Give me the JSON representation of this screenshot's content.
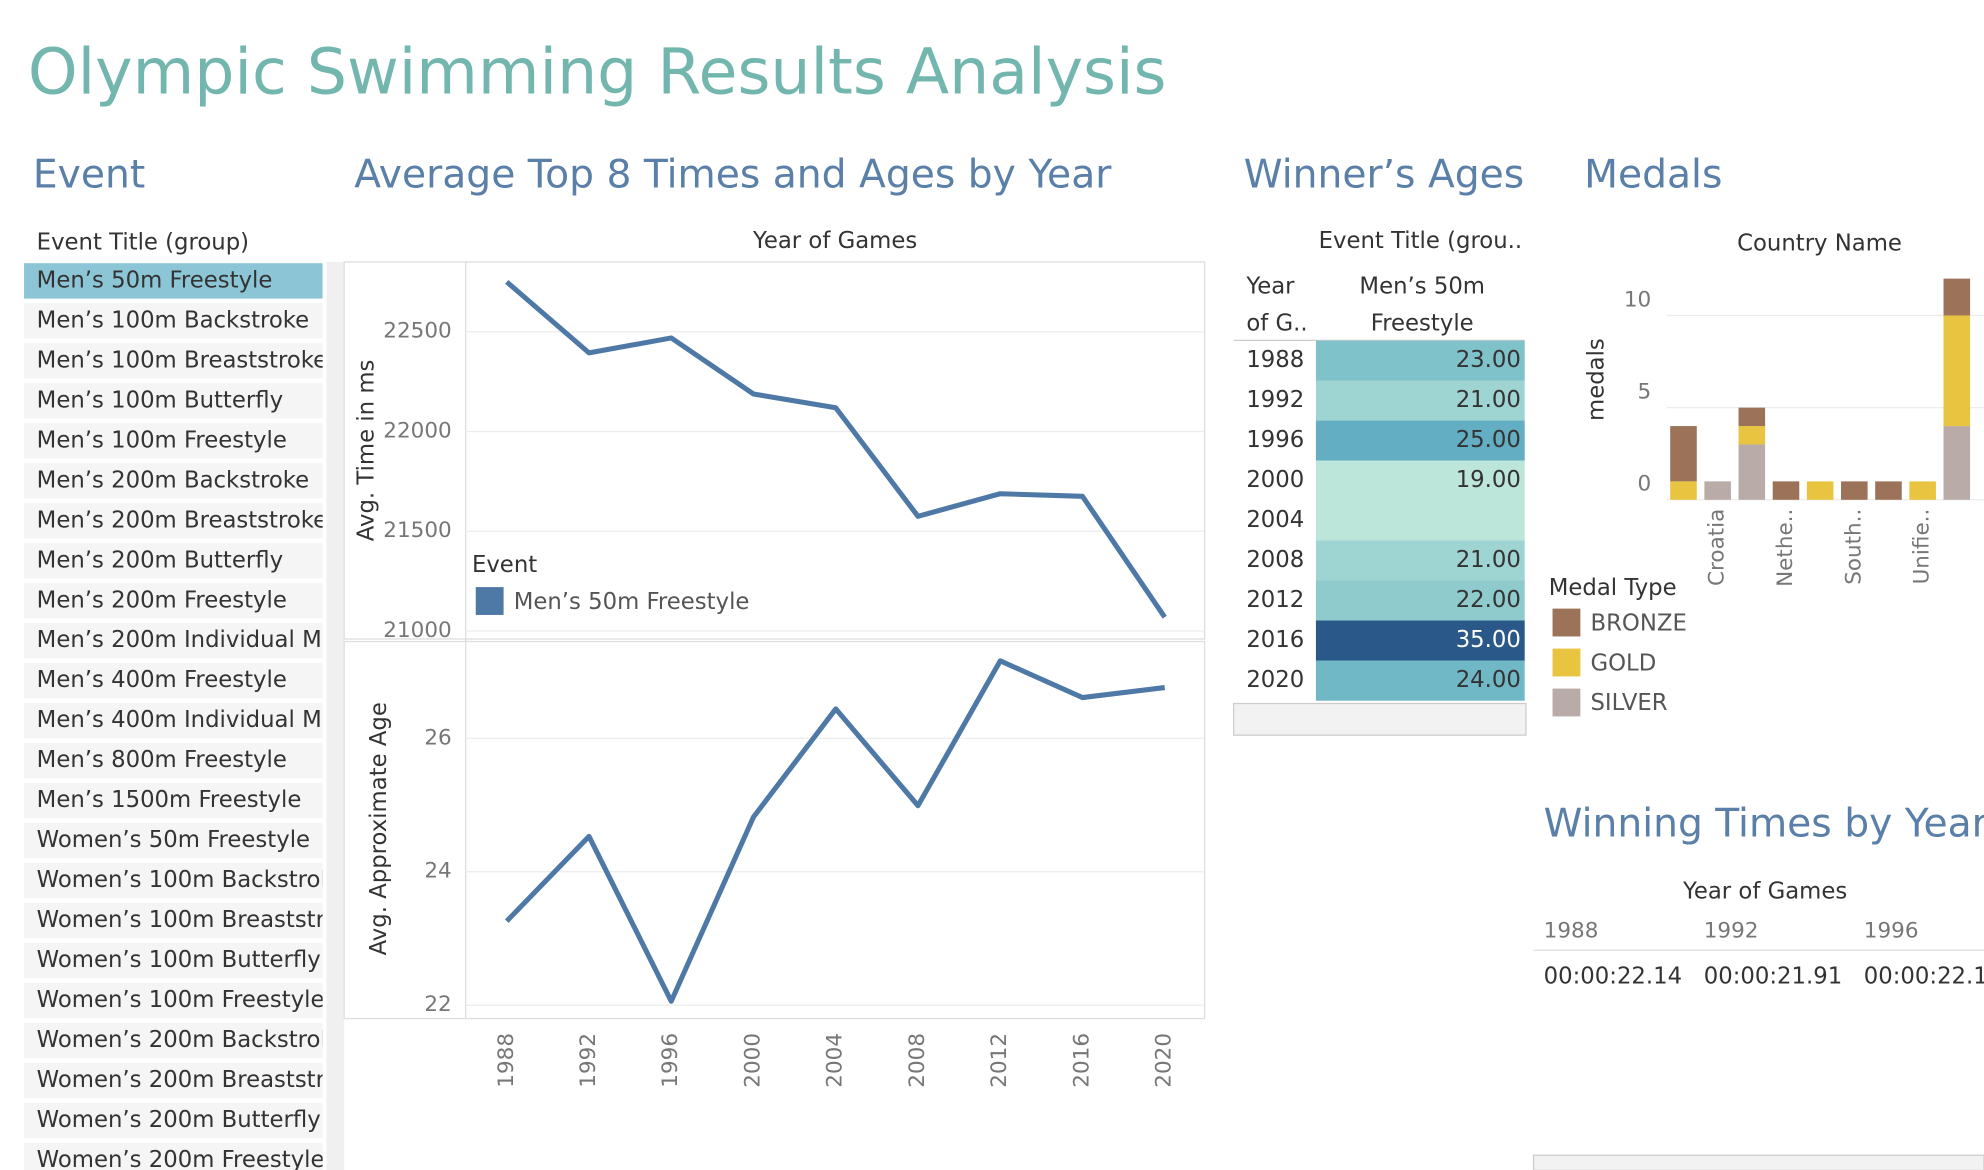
{
  "title": "Olympic Swimming Results Analysis",
  "events": {
    "title": "Event",
    "header": "Event Title (group)",
    "selected_index": 0,
    "items": [
      "Men’s 50m Freestyle",
      "Men’s 100m Backstroke",
      "Men’s 100m Breaststroke",
      "Men’s 100m Butterfly",
      "Men’s 100m Freestyle",
      "Men’s 200m Backstroke",
      "Men’s 200m Breaststroke",
      "Men’s 200m Butterfly",
      "Men’s 200m Freestyle",
      "Men’s 200m Individual M",
      "Men’s 400m Freestyle",
      "Men’s 400m Individual M",
      "Men’s 800m Freestyle",
      "Men’s 1500m Freestyle",
      "Women’s 50m Freestyle",
      "Women’s 100m Backstrol",
      "Women’s 100m Breaststr",
      "Women’s 100m Butterfly",
      "Women’s 100m Freestyle",
      "Women’s 200m Backstrol",
      "Women’s 200m Breaststr",
      "Women’s 200m Butterfly",
      "Women’s 200m Freestyle"
    ]
  },
  "chart_data": [
    {
      "type": "line",
      "title": "Average Top 8 Times and Ages by Year",
      "x_label": "Year of Games",
      "y_label": "Avg. Time in ms",
      "y2_label": "Avg. Approximate Age",
      "legend_title": "Event",
      "categories": [
        "1988",
        "1992",
        "1996",
        "2000",
        "2004",
        "2008",
        "2012",
        "2016",
        "2020"
      ],
      "ylim": [
        20960,
        22850
      ],
      "yticks": [
        21000,
        21500,
        22000,
        22500
      ],
      "y2lim": [
        21.8,
        27.45
      ],
      "y2ticks": [
        22,
        24,
        26
      ],
      "grid": true,
      "series": [
        {
          "name": "Men’s 50m Freestyle",
          "color": "#4e79a7",
          "values": [
            22750,
            22394,
            22469,
            22188,
            22119,
            21575,
            21688,
            21675,
            21069
          ]
        },
        {
          "color": "#4e79a7",
          "axis": "y2",
          "values": [
            23.26,
            24.53,
            22.06,
            24.82,
            26.44,
            24.99,
            27.16,
            26.61,
            26.76
          ]
        }
      ]
    },
    {
      "type": "bar",
      "stacked": true,
      "title": "Medals",
      "x_label": "Country Name",
      "y_label": "medals",
      "legend_title": "Medal Type",
      "categories": [
        null,
        "Croatia",
        null,
        "Nethe..",
        null,
        "South..",
        null,
        "Unifie..",
        null
      ],
      "ylim": [
        0,
        12.7
      ],
      "yticks": [
        0,
        5,
        10
      ],
      "grid": true,
      "series": [
        {
          "name": "BRONZE",
          "color": "#9c7259",
          "values": [
            3,
            0,
            1,
            1,
            0,
            1,
            1,
            0,
            2
          ]
        },
        {
          "name": "GOLD",
          "color": "#e9c440",
          "values": [
            1,
            0,
            1,
            0,
            1,
            0,
            0,
            1,
            6
          ]
        },
        {
          "name": "SILVER",
          "color": "#b9aca8",
          "values": [
            0,
            1,
            3,
            0,
            0,
            0,
            0,
            0,
            4
          ]
        }
      ]
    }
  ],
  "winners_ages": {
    "title": "Winner’s Ages",
    "column_group": "Event Title (grou..",
    "row_header": [
      "Year",
      "of G.."
    ],
    "column_header": [
      "Men’s 50m",
      "Freestyle"
    ],
    "rows": [
      [
        "1988",
        "23.00"
      ],
      [
        "1992",
        "21.00"
      ],
      [
        "1996",
        "25.00"
      ],
      [
        "2000",
        "19.00"
      ],
      [
        "2004",
        null
      ],
      [
        "2008",
        "21.00"
      ],
      [
        "2012",
        "22.00"
      ],
      [
        "2016",
        "35.00"
      ],
      [
        "2020",
        "24.00"
      ]
    ]
  },
  "winning_times": {
    "title": "Winning Times by Year",
    "header": "Year of Games",
    "columns": [
      "1988",
      "1992",
      "1996"
    ],
    "values": [
      "00:00:22.14",
      "00:00:21.91",
      "00:00:22.1"
    ]
  }
}
